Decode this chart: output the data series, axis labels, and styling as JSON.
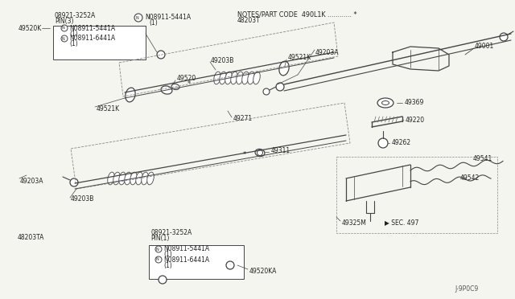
{
  "bg_color": "#f5f5f0",
  "line_color": "#444444",
  "text_color": "#222222",
  "diagram_id": "J-9P0C9",
  "notes_text": "NOTES/PART CODE  490L1K ............ *",
  "part_48203T": "48203T",
  "part_49520K": "49520K",
  "part_49001": "49001",
  "part_49369": "49369",
  "part_49220": "49220",
  "part_49262": "49262",
  "part_49203B_top": "49203B",
  "part_49203A_top": "49203A",
  "part_49521K_top": "49521K",
  "part_49520": "49520",
  "part_49271": "49271",
  "part_49311": "49311",
  "part_49203A_bot": "49203A",
  "part_49203B_bot": "49203B",
  "part_48203TA": "48203TA",
  "part_49541": "49541",
  "part_49542": "49542",
  "part_49325M": "49325M",
  "part_49520KA": "49520KA",
  "sec497": "SEC. 497",
  "box1_line1": "08921-3252A",
  "box1_line2": "PIN(3)",
  "box1_nut1": "N08911-5441A",
  "box1_nut1b": "(1)",
  "box1_nut2": "N08911-6441A",
  "box1_nut2b": "(1)",
  "top_nut_label": "N08911-5441A",
  "top_nut_label2": "(1)",
  "box2_line1": "08921-3252A",
  "box2_line2": "PIN(1)",
  "box2_nut1": "N08911-5441A",
  "box2_nut1b": "(1)",
  "box2_nut2": "N08911-6441A",
  "box2_nut2b": "(1)"
}
